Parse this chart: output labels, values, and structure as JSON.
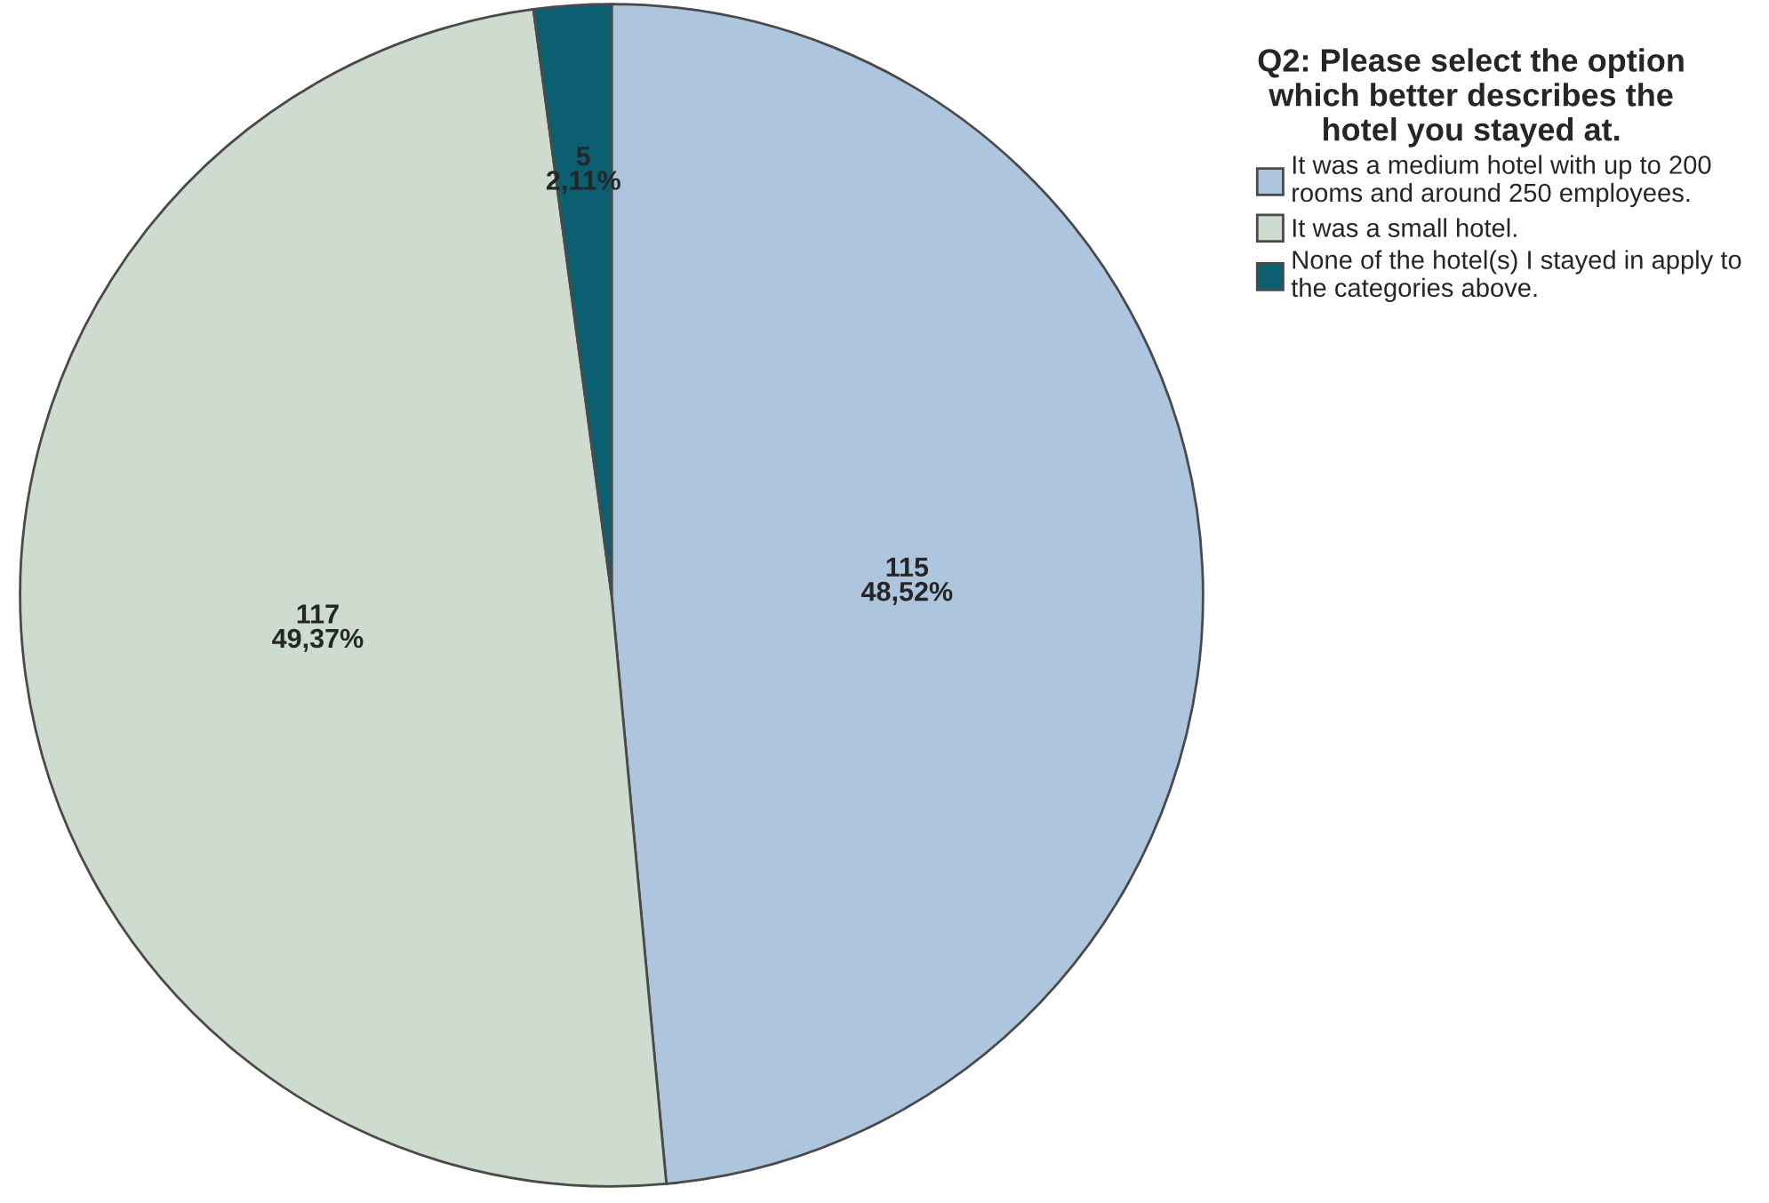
{
  "chart_data": {
    "type": "pie",
    "legend_title": "Q2: Please select the option\nwhich better describes the\nhotel you stayed at.",
    "categories": [
      "It was a medium hotel with up to 200\nrooms and around 250 employees.",
      "It was a small hotel.",
      "None of the hotel(s) I stayed in apply to\nthe categories above."
    ],
    "values": [
      115,
      117,
      5
    ],
    "value_labels": [
      "115\n48,52%",
      "117\n49,37%",
      "5\n2,11%"
    ],
    "colors": [
      "#adc5dd",
      "#cddccf",
      "#0b5f70"
    ],
    "legend": "top right"
  }
}
